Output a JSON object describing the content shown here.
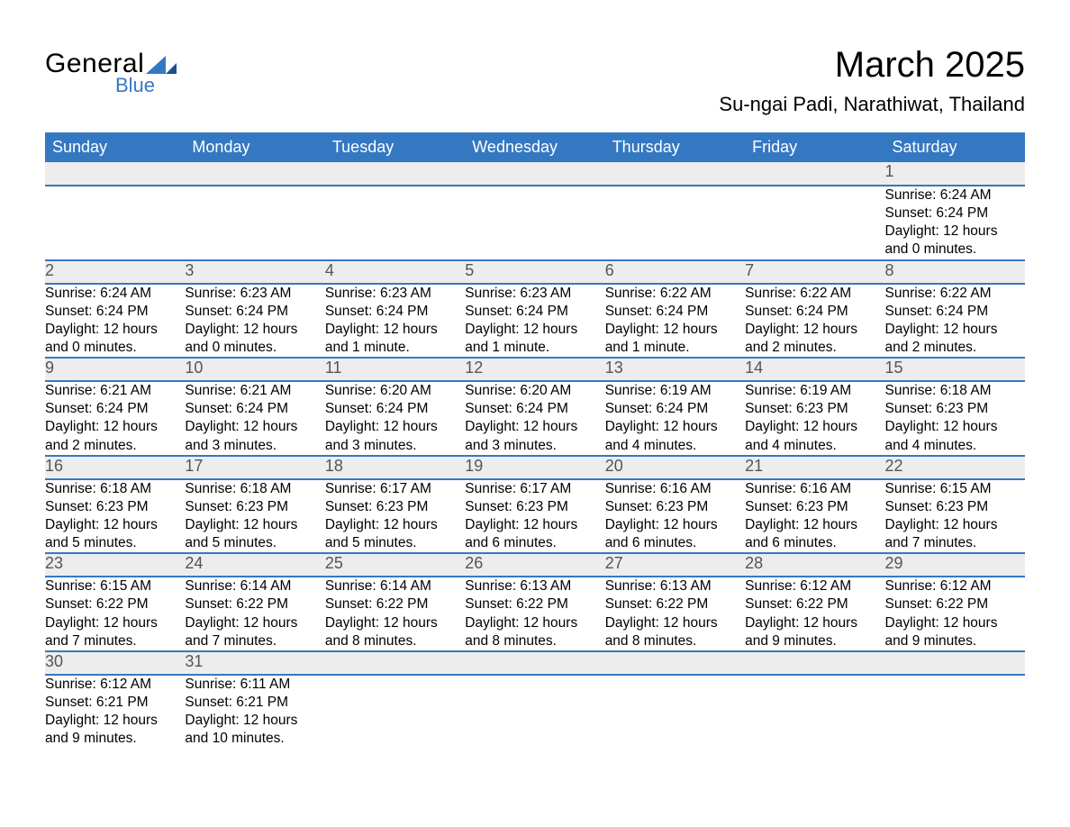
{
  "logo": {
    "text_top": "General",
    "text_bottom": "Blue",
    "mark_color": "#3578c2"
  },
  "title": "March 2025",
  "location": "Su-ngai Padi, Narathiwat, Thailand",
  "colors": {
    "header_bg": "#3578c2",
    "header_text": "#ffffff",
    "daynum_bg": "#ededed",
    "daynum_text": "#555555",
    "body_text": "#000000",
    "row_border": "#3578c2"
  },
  "typography": {
    "title_fontsize": 40,
    "location_fontsize": 22,
    "header_fontsize": 18,
    "daynum_fontsize": 18,
    "detail_fontsize": 15.5
  },
  "day_headers": [
    "Sunday",
    "Monday",
    "Tuesday",
    "Wednesday",
    "Thursday",
    "Friday",
    "Saturday"
  ],
  "weeks": [
    [
      null,
      null,
      null,
      null,
      null,
      null,
      {
        "day": "1",
        "sunrise": "Sunrise: 6:24 AM",
        "sunset": "Sunset: 6:24 PM",
        "daylight1": "Daylight: 12 hours",
        "daylight2": "and 0 minutes."
      }
    ],
    [
      {
        "day": "2",
        "sunrise": "Sunrise: 6:24 AM",
        "sunset": "Sunset: 6:24 PM",
        "daylight1": "Daylight: 12 hours",
        "daylight2": "and 0 minutes."
      },
      {
        "day": "3",
        "sunrise": "Sunrise: 6:23 AM",
        "sunset": "Sunset: 6:24 PM",
        "daylight1": "Daylight: 12 hours",
        "daylight2": "and 0 minutes."
      },
      {
        "day": "4",
        "sunrise": "Sunrise: 6:23 AM",
        "sunset": "Sunset: 6:24 PM",
        "daylight1": "Daylight: 12 hours",
        "daylight2": "and 1 minute."
      },
      {
        "day": "5",
        "sunrise": "Sunrise: 6:23 AM",
        "sunset": "Sunset: 6:24 PM",
        "daylight1": "Daylight: 12 hours",
        "daylight2": "and 1 minute."
      },
      {
        "day": "6",
        "sunrise": "Sunrise: 6:22 AM",
        "sunset": "Sunset: 6:24 PM",
        "daylight1": "Daylight: 12 hours",
        "daylight2": "and 1 minute."
      },
      {
        "day": "7",
        "sunrise": "Sunrise: 6:22 AM",
        "sunset": "Sunset: 6:24 PM",
        "daylight1": "Daylight: 12 hours",
        "daylight2": "and 2 minutes."
      },
      {
        "day": "8",
        "sunrise": "Sunrise: 6:22 AM",
        "sunset": "Sunset: 6:24 PM",
        "daylight1": "Daylight: 12 hours",
        "daylight2": "and 2 minutes."
      }
    ],
    [
      {
        "day": "9",
        "sunrise": "Sunrise: 6:21 AM",
        "sunset": "Sunset: 6:24 PM",
        "daylight1": "Daylight: 12 hours",
        "daylight2": "and 2 minutes."
      },
      {
        "day": "10",
        "sunrise": "Sunrise: 6:21 AM",
        "sunset": "Sunset: 6:24 PM",
        "daylight1": "Daylight: 12 hours",
        "daylight2": "and 3 minutes."
      },
      {
        "day": "11",
        "sunrise": "Sunrise: 6:20 AM",
        "sunset": "Sunset: 6:24 PM",
        "daylight1": "Daylight: 12 hours",
        "daylight2": "and 3 minutes."
      },
      {
        "day": "12",
        "sunrise": "Sunrise: 6:20 AM",
        "sunset": "Sunset: 6:24 PM",
        "daylight1": "Daylight: 12 hours",
        "daylight2": "and 3 minutes."
      },
      {
        "day": "13",
        "sunrise": "Sunrise: 6:19 AM",
        "sunset": "Sunset: 6:24 PM",
        "daylight1": "Daylight: 12 hours",
        "daylight2": "and 4 minutes."
      },
      {
        "day": "14",
        "sunrise": "Sunrise: 6:19 AM",
        "sunset": "Sunset: 6:23 PM",
        "daylight1": "Daylight: 12 hours",
        "daylight2": "and 4 minutes."
      },
      {
        "day": "15",
        "sunrise": "Sunrise: 6:18 AM",
        "sunset": "Sunset: 6:23 PM",
        "daylight1": "Daylight: 12 hours",
        "daylight2": "and 4 minutes."
      }
    ],
    [
      {
        "day": "16",
        "sunrise": "Sunrise: 6:18 AM",
        "sunset": "Sunset: 6:23 PM",
        "daylight1": "Daylight: 12 hours",
        "daylight2": "and 5 minutes."
      },
      {
        "day": "17",
        "sunrise": "Sunrise: 6:18 AM",
        "sunset": "Sunset: 6:23 PM",
        "daylight1": "Daylight: 12 hours",
        "daylight2": "and 5 minutes."
      },
      {
        "day": "18",
        "sunrise": "Sunrise: 6:17 AM",
        "sunset": "Sunset: 6:23 PM",
        "daylight1": "Daylight: 12 hours",
        "daylight2": "and 5 minutes."
      },
      {
        "day": "19",
        "sunrise": "Sunrise: 6:17 AM",
        "sunset": "Sunset: 6:23 PM",
        "daylight1": "Daylight: 12 hours",
        "daylight2": "and 6 minutes."
      },
      {
        "day": "20",
        "sunrise": "Sunrise: 6:16 AM",
        "sunset": "Sunset: 6:23 PM",
        "daylight1": "Daylight: 12 hours",
        "daylight2": "and 6 minutes."
      },
      {
        "day": "21",
        "sunrise": "Sunrise: 6:16 AM",
        "sunset": "Sunset: 6:23 PM",
        "daylight1": "Daylight: 12 hours",
        "daylight2": "and 6 minutes."
      },
      {
        "day": "22",
        "sunrise": "Sunrise: 6:15 AM",
        "sunset": "Sunset: 6:23 PM",
        "daylight1": "Daylight: 12 hours",
        "daylight2": "and 7 minutes."
      }
    ],
    [
      {
        "day": "23",
        "sunrise": "Sunrise: 6:15 AM",
        "sunset": "Sunset: 6:22 PM",
        "daylight1": "Daylight: 12 hours",
        "daylight2": "and 7 minutes."
      },
      {
        "day": "24",
        "sunrise": "Sunrise: 6:14 AM",
        "sunset": "Sunset: 6:22 PM",
        "daylight1": "Daylight: 12 hours",
        "daylight2": "and 7 minutes."
      },
      {
        "day": "25",
        "sunrise": "Sunrise: 6:14 AM",
        "sunset": "Sunset: 6:22 PM",
        "daylight1": "Daylight: 12 hours",
        "daylight2": "and 8 minutes."
      },
      {
        "day": "26",
        "sunrise": "Sunrise: 6:13 AM",
        "sunset": "Sunset: 6:22 PM",
        "daylight1": "Daylight: 12 hours",
        "daylight2": "and 8 minutes."
      },
      {
        "day": "27",
        "sunrise": "Sunrise: 6:13 AM",
        "sunset": "Sunset: 6:22 PM",
        "daylight1": "Daylight: 12 hours",
        "daylight2": "and 8 minutes."
      },
      {
        "day": "28",
        "sunrise": "Sunrise: 6:12 AM",
        "sunset": "Sunset: 6:22 PM",
        "daylight1": "Daylight: 12 hours",
        "daylight2": "and 9 minutes."
      },
      {
        "day": "29",
        "sunrise": "Sunrise: 6:12 AM",
        "sunset": "Sunset: 6:22 PM",
        "daylight1": "Daylight: 12 hours",
        "daylight2": "and 9 minutes."
      }
    ],
    [
      {
        "day": "30",
        "sunrise": "Sunrise: 6:12 AM",
        "sunset": "Sunset: 6:21 PM",
        "daylight1": "Daylight: 12 hours",
        "daylight2": "and 9 minutes."
      },
      {
        "day": "31",
        "sunrise": "Sunrise: 6:11 AM",
        "sunset": "Sunset: 6:21 PM",
        "daylight1": "Daylight: 12 hours",
        "daylight2": "and 10 minutes."
      },
      null,
      null,
      null,
      null,
      null
    ]
  ]
}
